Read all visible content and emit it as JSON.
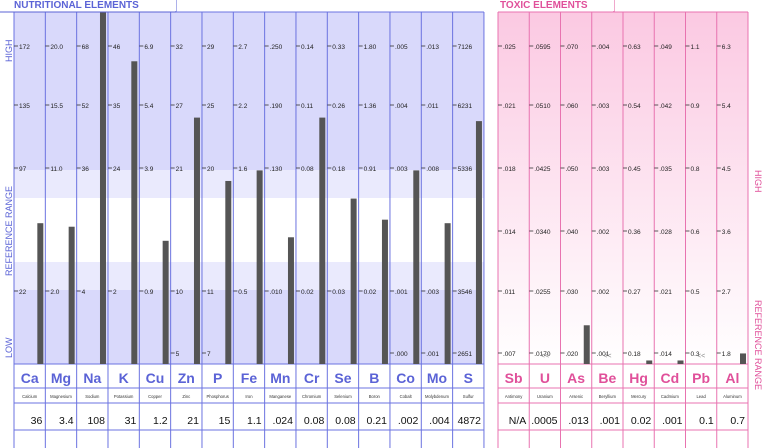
{
  "nutritional": {
    "title": "NUTRITIONAL ELEMENTS",
    "axis_high": "HIGH",
    "axis_reference": "REFERENCE RANGE",
    "axis_low": "LOW",
    "color": "#5b63d6",
    "elements": [
      {
        "symbol": "Ca",
        "name": "Calcium",
        "result": "36",
        "ticks": [
          "172",
          "135",
          "97",
          "",
          "22",
          ""
        ],
        "level": 0.4
      },
      {
        "symbol": "Mg",
        "name": "Magnesium",
        "result": "3.4",
        "ticks": [
          "20.0",
          "15.5",
          "11.0",
          "",
          "2.0",
          ""
        ],
        "level": 0.39
      },
      {
        "symbol": "Na",
        "name": "Sodium",
        "result": "108",
        "ticks": [
          "68",
          "52",
          "36",
          "",
          "4",
          ""
        ],
        "level": 1.0
      },
      {
        "symbol": "K",
        "name": "Potassium",
        "result": "31",
        "ticks": [
          "46",
          "35",
          "24",
          "",
          "2",
          ""
        ],
        "level": 0.86
      },
      {
        "symbol": "Cu",
        "name": "Copper",
        "result": "1.2",
        "ticks": [
          "6.9",
          "5.4",
          "3.9",
          "",
          "0.9",
          ""
        ],
        "level": 0.35
      },
      {
        "symbol": "Zn",
        "name": "Zinc",
        "result": "21",
        "ticks": [
          "32",
          "27",
          "21",
          "",
          "10",
          "5"
        ],
        "level": 0.7
      },
      {
        "symbol": "P",
        "name": "Phosphorus",
        "result": "15",
        "ticks": [
          "29",
          "25",
          "20",
          "",
          "11",
          "7"
        ],
        "level": 0.52
      },
      {
        "symbol": "Fe",
        "name": "Iron",
        "result": "1.1",
        "ticks": [
          "2.7",
          "2.2",
          "1.6",
          "",
          "0.5",
          ""
        ],
        "level": 0.55
      },
      {
        "symbol": "Mn",
        "name": "Manganese",
        "result": ".024",
        "ticks": [
          ".250",
          ".190",
          ".130",
          "",
          ".010",
          ""
        ],
        "level": 0.36
      },
      {
        "symbol": "Cr",
        "name": "Chromium",
        "result": "0.08",
        "ticks": [
          "0.14",
          "0.11",
          "0.08",
          "",
          "0.02",
          ""
        ],
        "level": 0.7
      },
      {
        "symbol": "Se",
        "name": "Selenium",
        "result": "0.08",
        "ticks": [
          "0.33",
          "0.26",
          "0.18",
          "",
          "0.03",
          ""
        ],
        "level": 0.47
      },
      {
        "symbol": "B",
        "name": "Boron",
        "result": "0.21",
        "ticks": [
          "1.80",
          "1.36",
          "0.91",
          "",
          "0.02",
          ""
        ],
        "level": 0.41
      },
      {
        "symbol": "Co",
        "name": "Cobalt",
        "result": ".002",
        "ticks": [
          ".005",
          ".004",
          ".003",
          "",
          ".001",
          ".000"
        ],
        "level": 0.55
      },
      {
        "symbol": "Mo",
        "name": "Molybdenum",
        "result": ".004",
        "ticks": [
          ".013",
          ".011",
          ".008",
          "",
          ".003",
          ".001"
        ],
        "level": 0.4
      },
      {
        "symbol": "S",
        "name": "Sulfur",
        "result": "4872",
        "ticks": [
          "7126",
          "6231",
          "5336",
          "",
          "3546",
          "2651"
        ],
        "level": 0.69
      }
    ]
  },
  "toxic": {
    "title": "TOXIC ELEMENTS",
    "axis_high": "HIGH",
    "axis_reference": "REFERENCE RANGE",
    "color": "#e0509a",
    "elements": [
      {
        "symbol": "Sb",
        "name": "Antimony",
        "result": "N/A",
        "ticks": [
          ".025",
          ".021",
          ".018",
          ".014",
          ".011",
          ".007"
        ],
        "level": 0,
        "mark": ""
      },
      {
        "symbol": "U",
        "name": "Uranium",
        "result": ".0005",
        "ticks": [
          ".0595",
          ".0510",
          ".0425",
          ".0340",
          ".0255",
          ".0170"
        ],
        "level": 0,
        "mark": "<<"
      },
      {
        "symbol": "As",
        "name": "Arsenic",
        "result": ".013",
        "ticks": [
          ".070",
          ".060",
          ".050",
          ".040",
          ".030",
          ".020"
        ],
        "level": 0.11,
        "mark": ""
      },
      {
        "symbol": "Be",
        "name": "Beryllium",
        "result": ".001",
        "ticks": [
          ".004",
          ".003",
          ".003",
          ".002",
          ".002",
          ".001"
        ],
        "level": 0,
        "mark": "<<"
      },
      {
        "symbol": "Hg",
        "name": "Mercury",
        "result": "0.02",
        "ticks": [
          "0.63",
          "0.54",
          "0.45",
          "0.36",
          "0.27",
          "0.18"
        ],
        "level": 0.01,
        "mark": ""
      },
      {
        "symbol": "Cd",
        "name": "Cadmium",
        "result": ".001",
        "ticks": [
          ".049",
          ".042",
          ".035",
          ".028",
          ".021",
          ".014"
        ],
        "level": 0.01,
        "mark": ""
      },
      {
        "symbol": "Pb",
        "name": "Lead",
        "result": "0.1",
        "ticks": [
          "1.1",
          "0.9",
          "0.8",
          "0.6",
          "0.5",
          "0.3"
        ],
        "level": 0,
        "mark": "<<"
      },
      {
        "symbol": "Al",
        "name": "Aluminum",
        "result": "0.7",
        "ticks": [
          "6.3",
          "5.4",
          "4.5",
          "3.6",
          "2.7",
          "1.8"
        ],
        "level": 0.03,
        "mark": ""
      }
    ]
  },
  "chart_data": {
    "type": "bar",
    "categories": [
      "Ca",
      "Mg",
      "Na",
      "K",
      "Cu",
      "Zn",
      "P",
      "Fe",
      "Mn",
      "Cr",
      "Se",
      "B",
      "Co",
      "Mo",
      "S",
      "Sb",
      "U",
      "As",
      "Be",
      "Hg",
      "Cd",
      "Pb",
      "Al"
    ],
    "values": [
      36,
      3.4,
      108,
      31,
      1.2,
      21,
      15,
      1.1,
      0.024,
      0.08,
      0.08,
      0.21,
      0.002,
      0.004,
      4872,
      null,
      0.0005,
      0.013,
      0.001,
      0.02,
      0.001,
      0.1,
      0.7
    ],
    "title": "",
    "xlabel": "",
    "ylabel": ""
  }
}
